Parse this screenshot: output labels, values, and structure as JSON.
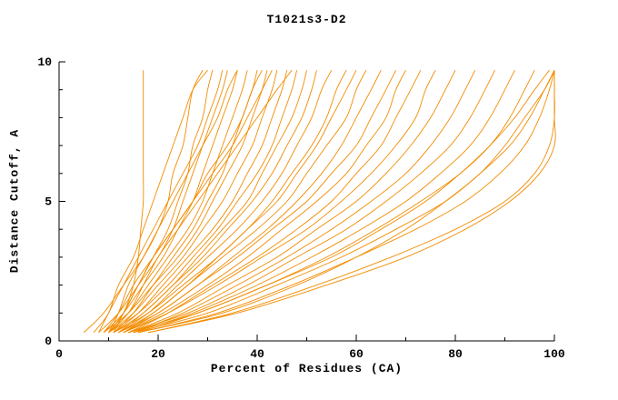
{
  "chart_data": {
    "type": "line",
    "title": "T1021s3-D2",
    "xlabel": "Percent of Residues (CA)",
    "ylabel": "Distance Cutoff, A",
    "xlim": [
      0,
      100
    ],
    "ylim": [
      0,
      10
    ],
    "x_major_ticks": [
      0,
      20,
      40,
      60,
      80,
      100
    ],
    "x_minor_ticks": [
      10,
      30,
      50,
      70,
      90
    ],
    "y_major_ticks": [
      0,
      5,
      10
    ],
    "y_minor_ticks": [
      1,
      2,
      3,
      4,
      6,
      7,
      8,
      9
    ],
    "line_color": "#f28c00",
    "axis_color": "#000000",
    "background": "#ffffff",
    "y_levels": [
      0.3,
      1,
      2,
      3,
      4,
      5,
      6,
      7,
      8,
      9,
      9.7
    ],
    "series_x": [
      [
        10,
        13,
        15,
        16,
        16.5,
        17,
        17,
        17,
        17,
        17,
        17
      ],
      [
        5,
        9,
        13,
        17,
        20,
        22,
        23,
        25,
        26,
        27,
        29
      ],
      [
        10,
        13,
        16,
        19,
        22,
        24,
        26,
        27,
        29,
        30,
        31
      ],
      [
        8,
        12,
        16,
        20,
        23,
        25,
        27,
        29,
        31,
        33,
        34
      ],
      [
        9,
        13,
        17,
        21,
        24,
        27,
        29,
        31,
        33,
        35,
        36
      ],
      [
        10,
        14,
        18,
        22,
        26,
        29,
        31,
        33,
        35,
        37,
        38
      ],
      [
        11,
        15,
        19,
        23,
        27,
        30,
        33,
        35,
        37,
        39,
        40
      ],
      [
        9,
        14,
        19,
        24,
        28,
        31,
        34,
        37,
        39,
        41,
        42
      ],
      [
        10,
        15,
        20,
        25,
        29,
        33,
        36,
        39,
        41,
        43,
        44
      ],
      [
        11,
        16,
        21,
        26,
        31,
        35,
        38,
        41,
        43,
        45,
        46
      ],
      [
        10,
        16,
        22,
        27,
        32,
        36,
        40,
        43,
        45,
        47,
        48
      ],
      [
        12,
        17,
        23,
        28,
        33,
        38,
        41,
        44,
        47,
        49,
        50
      ],
      [
        11,
        17,
        23,
        29,
        34,
        39,
        43,
        46,
        49,
        51,
        52
      ],
      [
        12,
        18,
        24,
        30,
        36,
        41,
        45,
        48,
        51,
        53,
        55
      ],
      [
        13,
        19,
        26,
        32,
        38,
        43,
        47,
        51,
        54,
        56,
        58
      ],
      [
        11,
        18,
        25,
        32,
        38,
        44,
        48,
        52,
        55,
        58,
        60
      ],
      [
        12,
        19,
        26,
        33,
        40,
        46,
        50,
        54,
        58,
        60,
        62
      ],
      [
        13,
        20,
        28,
        35,
        42,
        48,
        53,
        57,
        60,
        63,
        65
      ],
      [
        12,
        20,
        28,
        36,
        43,
        50,
        55,
        60,
        63,
        66,
        68
      ],
      [
        13,
        21,
        30,
        38,
        45,
        52,
        58,
        62,
        66,
        68,
        70
      ],
      [
        14,
        22,
        31,
        40,
        48,
        55,
        60,
        65,
        68,
        71,
        73
      ],
      [
        13,
        22,
        32,
        41,
        50,
        57,
        63,
        68,
        72,
        74,
        76
      ],
      [
        14,
        24,
        34,
        44,
        52,
        60,
        66,
        71,
        75,
        78,
        80
      ],
      [
        15,
        25,
        36,
        46,
        55,
        63,
        70,
        75,
        79,
        82,
        84
      ],
      [
        14,
        26,
        38,
        48,
        58,
        66,
        73,
        79,
        83,
        86,
        88
      ],
      [
        15,
        27,
        40,
        51,
        61,
        70,
        77,
        83,
        87,
        90,
        92
      ],
      [
        16,
        28,
        42,
        54,
        64,
        73,
        81,
        87,
        91,
        94,
        96
      ],
      [
        15,
        30,
        44,
        57,
        68,
        78,
        85,
        91,
        95,
        98,
        100
      ],
      [
        16,
        32,
        47,
        60,
        72,
        82,
        89,
        94,
        97,
        99,
        100
      ],
      [
        18,
        35,
        52,
        67,
        80,
        90,
        96,
        99,
        100,
        100,
        100
      ],
      [
        7,
        10,
        12,
        15,
        17,
        19,
        21,
        23,
        25,
        27,
        30
      ],
      [
        8,
        10,
        13,
        16,
        19,
        22,
        25,
        28,
        30,
        32,
        33
      ],
      [
        10,
        12,
        14,
        17,
        20,
        23,
        26,
        29,
        32,
        34,
        36
      ],
      [
        11,
        13,
        16,
        19,
        23,
        27,
        30,
        34,
        37,
        39,
        41
      ],
      [
        9,
        12,
        15,
        19,
        23,
        27,
        31,
        35,
        38,
        41,
        43
      ],
      [
        10,
        14,
        17,
        20,
        24,
        28,
        32,
        36,
        40,
        44,
        47
      ],
      [
        16,
        33,
        48,
        60,
        70,
        78,
        85,
        90,
        94,
        98,
        100
      ],
      [
        14,
        28,
        42,
        55,
        65,
        74,
        81,
        87,
        92,
        96,
        99
      ],
      [
        18,
        36,
        54,
        70,
        82,
        91,
        97,
        100,
        100,
        100,
        100
      ]
    ]
  }
}
